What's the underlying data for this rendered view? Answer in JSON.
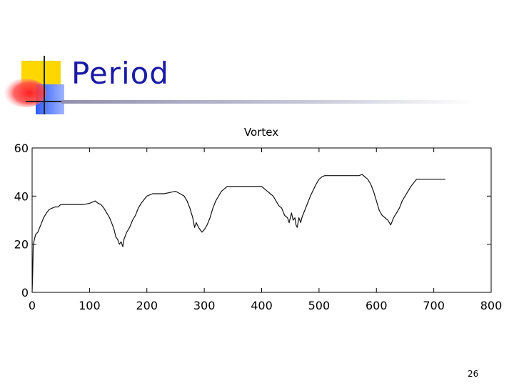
{
  "slide": {
    "title": "Period",
    "page_number": "26"
  },
  "colors": {
    "title_text": "#1a1aa6",
    "logo_yellow": "#ffd700",
    "logo_red": "#ff3030",
    "logo_blue": "#2f5cff",
    "line": "#111111"
  },
  "chart_data": {
    "type": "line",
    "title": "Vortex",
    "xlabel": "",
    "ylabel": "",
    "xlim": [
      0,
      800
    ],
    "ylim": [
      0,
      60
    ],
    "xticks": [
      0,
      100,
      200,
      300,
      400,
      500,
      600,
      700,
      800
    ],
    "yticks": [
      0,
      20,
      40,
      60
    ],
    "grid": false,
    "series": [
      {
        "name": "",
        "x": [
          0,
          1,
          2,
          4,
          6,
          10,
          15,
          20,
          25,
          30,
          35,
          40,
          45,
          50,
          60,
          70,
          80,
          90,
          100,
          105,
          110,
          115,
          120,
          125,
          130,
          135,
          140,
          143,
          146,
          149,
          152,
          155,
          158,
          160,
          165,
          170,
          175,
          180,
          185,
          190,
          195,
          200,
          210,
          220,
          230,
          240,
          250,
          258,
          265,
          270,
          275,
          280,
          283,
          286,
          290,
          293,
          296,
          300,
          305,
          310,
          315,
          320,
          325,
          330,
          335,
          340,
          350,
          360,
          370,
          380,
          390,
          395,
          400,
          405,
          410,
          415,
          420,
          425,
          430,
          435,
          440,
          445,
          448,
          450,
          452,
          455,
          458,
          460,
          462,
          465,
          468,
          470,
          475,
          480,
          485,
          490,
          495,
          500,
          505,
          510,
          520,
          530,
          540,
          550,
          560,
          570,
          575,
          580,
          585,
          590,
          595,
          600,
          605,
          610,
          615,
          620,
          625,
          630,
          635,
          640,
          645,
          650,
          655,
          660,
          665,
          670,
          680,
          690,
          700,
          710,
          715,
          720
        ],
        "y": [
          0,
          8,
          20,
          22,
          24,
          25,
          28,
          31,
          33,
          34.5,
          35,
          35.5,
          35.5,
          36.5,
          36.5,
          36.5,
          36.5,
          36.5,
          37,
          37.5,
          38,
          37,
          36.5,
          35,
          33,
          31,
          28,
          26,
          23,
          22,
          20,
          21,
          19,
          22,
          25,
          27,
          30,
          32,
          35,
          37,
          38.5,
          40,
          41,
          41,
          41,
          41.5,
          42,
          41,
          40,
          38,
          35,
          31,
          27,
          29,
          27,
          26,
          25,
          26,
          28,
          31,
          35,
          38,
          40,
          42,
          43,
          44,
          44,
          44,
          44,
          44,
          44,
          44,
          44,
          43,
          42,
          41,
          40,
          38,
          36,
          35,
          32,
          31,
          29,
          31,
          33,
          30,
          31,
          28,
          27,
          31,
          29,
          31,
          34,
          37,
          40,
          42.5,
          45,
          47,
          48,
          48.5,
          48.5,
          48.5,
          48.5,
          48.5,
          48.5,
          48.5,
          49,
          48,
          47,
          45,
          42,
          38,
          34,
          32,
          31,
          30,
          28,
          31,
          33,
          35,
          38,
          40,
          42,
          44,
          45.5,
          47,
          47,
          47,
          47,
          47,
          47,
          47
        ]
      }
    ]
  }
}
